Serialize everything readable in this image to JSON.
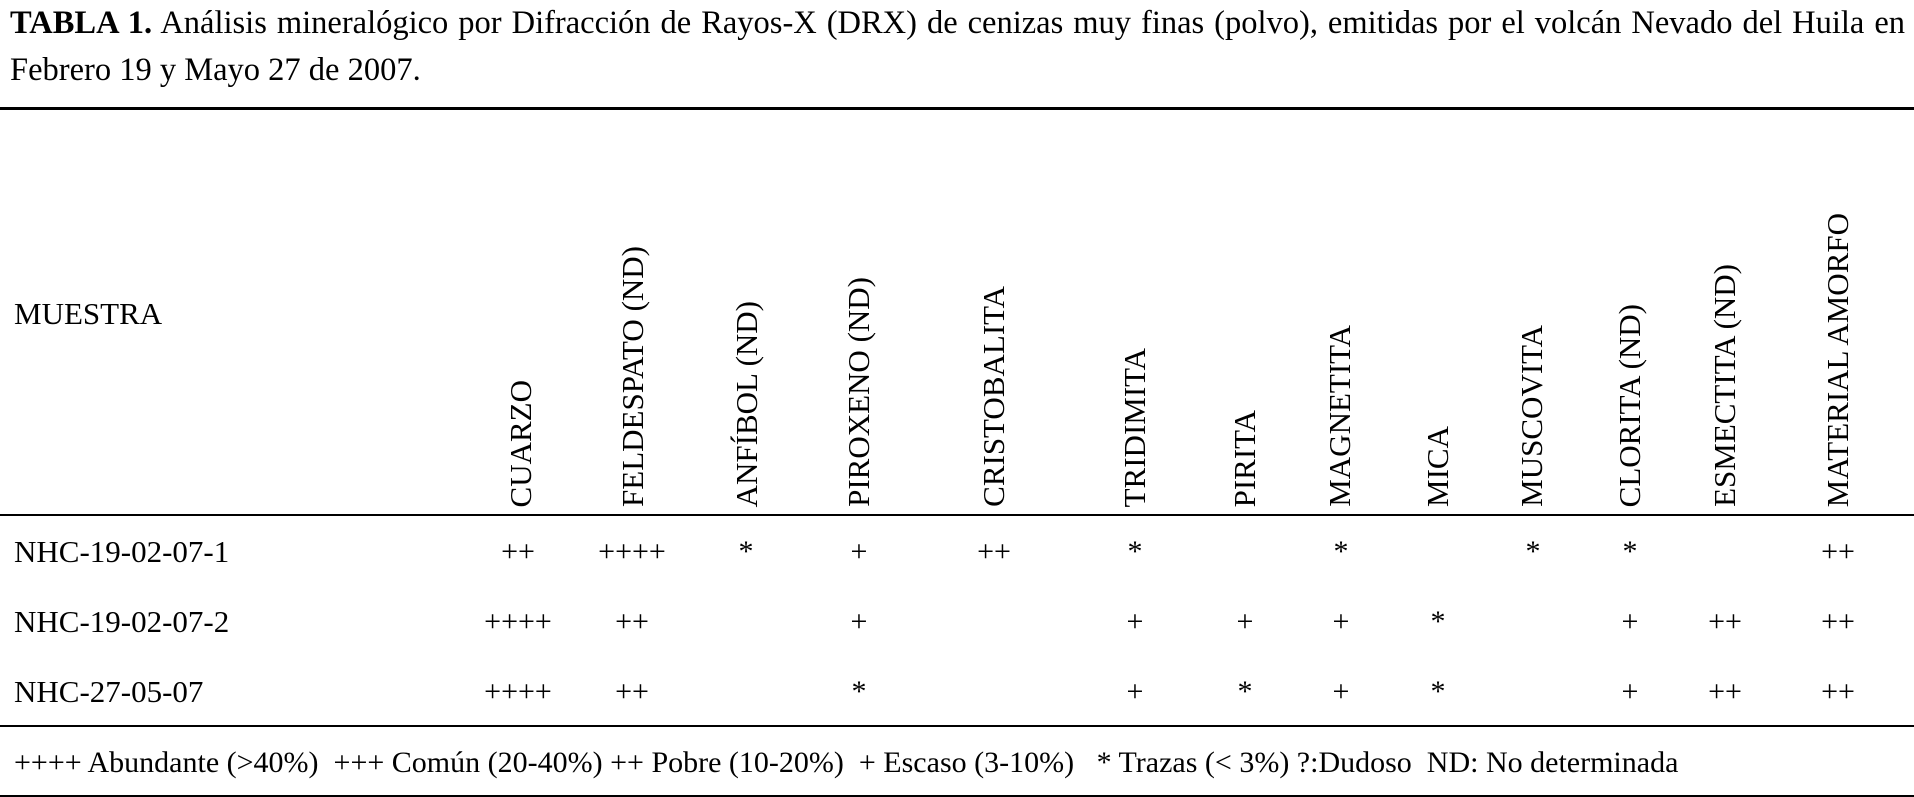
{
  "caption": {
    "label": "TABLA 1.",
    "text": " Análisis mineralógico por Difracción de Rayos-X (DRX) de cenizas muy finas (polvo), emitidas por el volcán Nevado del Huila en Febrero 19 y Mayo 27 de 2007."
  },
  "table": {
    "sample_header": "MUESTRA",
    "columns": [
      "CUARZO",
      "FELDESPATO (ND)",
      "ANFÍBOL (ND)",
      "PIROXENO (ND)",
      "CRISTOBALITA",
      "TRIDIMITA",
      "PIRITA",
      "MAGNETITA",
      "MICA",
      "MUSCOVITA",
      "CLORITA (ND)",
      "ESMECTITA (ND)",
      "MATERIAL AMORFO"
    ],
    "rows": [
      {
        "sample": "NHC-19-02-07-1",
        "cells": [
          "++",
          "++++",
          "*",
          "+",
          "++",
          "*",
          "",
          "*",
          "",
          "*",
          "*",
          "",
          "++"
        ]
      },
      {
        "sample": "NHC-19-02-07-2",
        "cells": [
          "++++",
          "++",
          "",
          "+",
          "",
          "+",
          "+",
          "+",
          "*",
          "",
          "+",
          "++",
          "++"
        ]
      },
      {
        "sample": "NHC-27-05-07",
        "cells": [
          "++++",
          "++",
          "",
          "*",
          "",
          "+",
          "*",
          "+",
          "*",
          "",
          "+",
          "++",
          "++"
        ]
      }
    ]
  },
  "legend": "++++ Abundante (>40%)  +++ Común (20-40%) ++ Pobre (10-20%)  + Escaso (3-10%)   * Trazas (< 3%) ?:Dudoso  ND: No determinada"
}
